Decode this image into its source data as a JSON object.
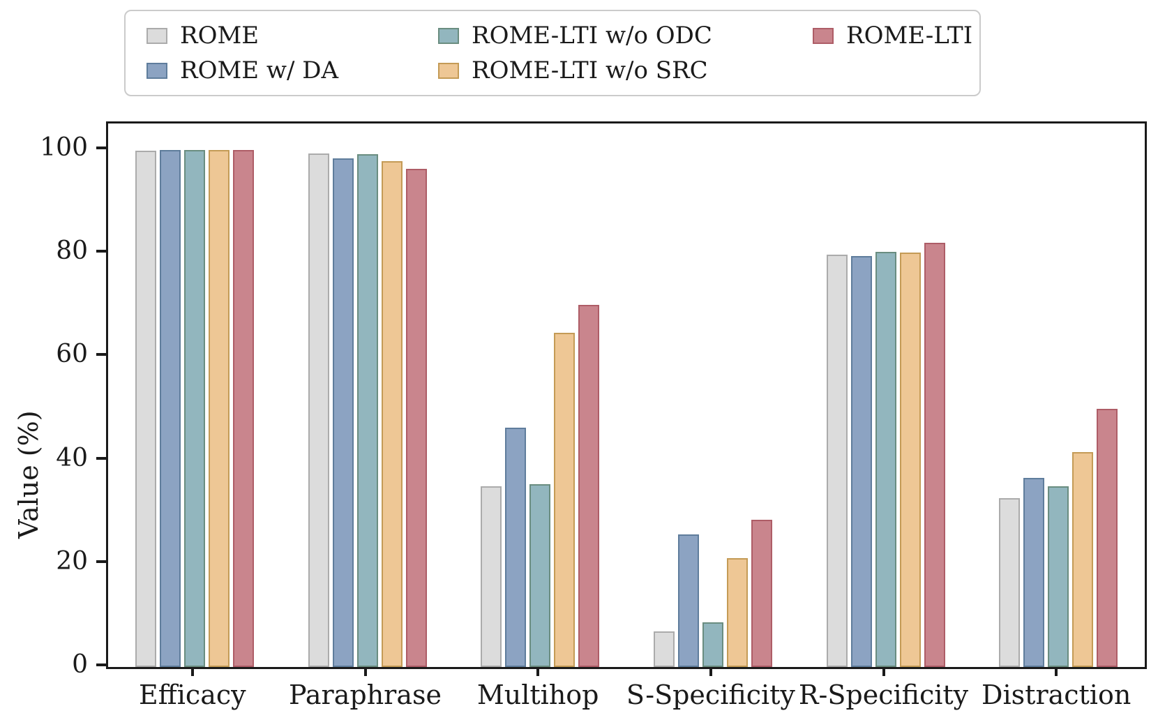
{
  "chart_data": {
    "type": "bar",
    "title": "",
    "xlabel": "",
    "ylabel": "Value (%)",
    "ylim": [
      0,
      105.1
    ],
    "yticks": [
      0,
      20,
      40,
      60,
      80,
      100
    ],
    "grid": false,
    "legend_position": "top",
    "categories": [
      "Efficacy",
      "Paraphrase",
      "Multihop",
      "S-Specificity",
      "R-Specificity",
      "Distraction"
    ],
    "series": [
      {
        "name": "ROME",
        "fill": "#DCDCDC",
        "edge": "#ABABAB",
        "values": [
          99.9,
          99.3,
          35.0,
          6.9,
          79.7,
          32.7
        ]
      },
      {
        "name": "ROME w/ DA",
        "fill": "#8CA3C2",
        "edge": "#5F7D9C",
        "values": [
          100.0,
          98.3,
          46.3,
          25.6,
          79.5,
          36.5
        ]
      },
      {
        "name": "ROME-LTI w/o ODC",
        "fill": "#92B6BE",
        "edge": "#6A8D80",
        "values": [
          100.0,
          99.2,
          35.3,
          8.7,
          80.3,
          35.0
        ]
      },
      {
        "name": "ROME-LTI w/o SRC",
        "fill": "#EEC795",
        "edge": "#C49B56",
        "values": [
          100.0,
          97.8,
          64.6,
          21.0,
          80.2,
          41.5
        ]
      },
      {
        "name": "ROME-LTI",
        "fill": "#C9858D",
        "edge": "#AE5D67",
        "values": [
          100.0,
          96.4,
          70.0,
          28.5,
          82.0,
          49.9
        ]
      }
    ],
    "axis_color": "#1a1a1a",
    "legend_border_color": "#cbcbcb"
  }
}
